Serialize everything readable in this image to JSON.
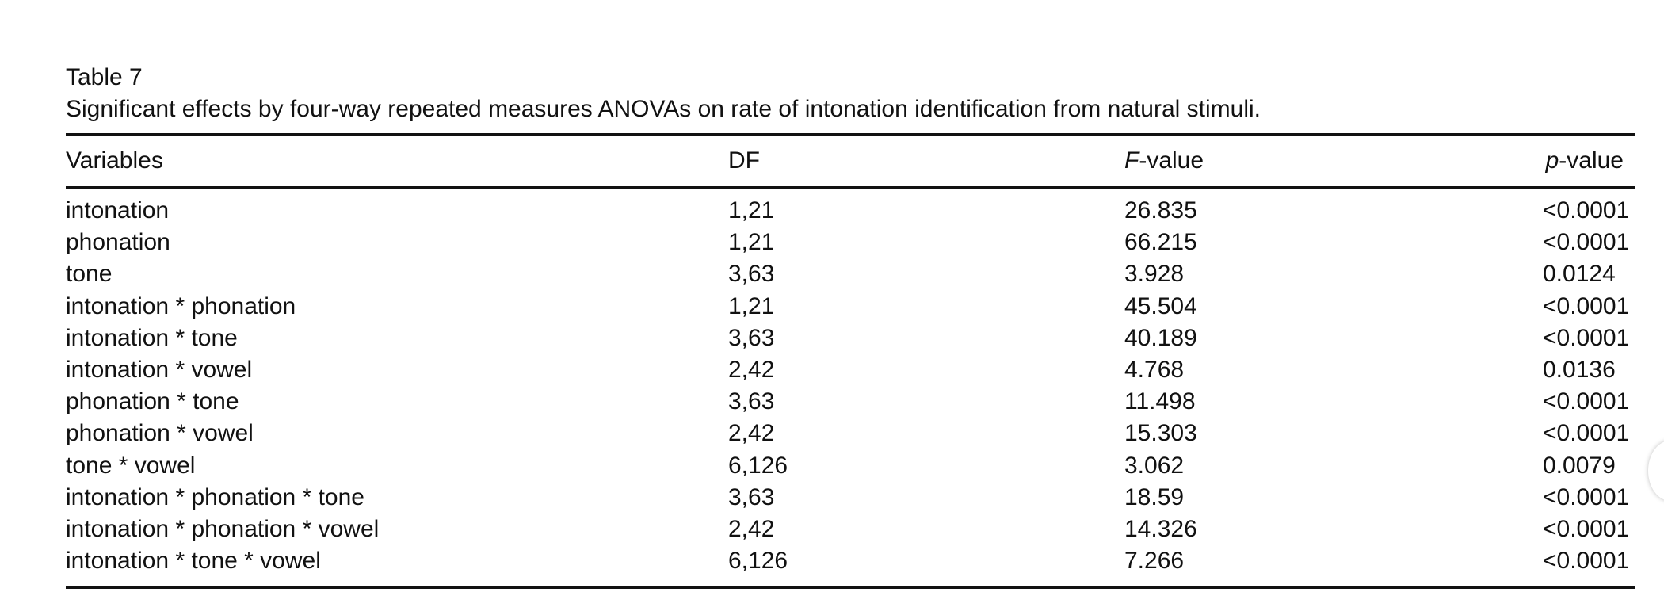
{
  "table": {
    "label": "Table 7",
    "caption": "Significant effects by four-way repeated measures ANOVAs on rate of intonation identification from natural stimuli.",
    "headers": {
      "variables": "Variables",
      "df": "DF",
      "f_italic": "F",
      "f_suffix": "-value",
      "p_italic": "p",
      "p_suffix": "-value"
    },
    "rows": [
      {
        "variables": "intonation",
        "df": "1,21",
        "f": "26.835",
        "p": "<0.0001"
      },
      {
        "variables": "phonation",
        "df": "1,21",
        "f": "66.215",
        "p": "<0.0001"
      },
      {
        "variables": "tone",
        "df": "3,63",
        "f": "3.928",
        "p": "0.0124"
      },
      {
        "variables": "intonation * phonation",
        "df": "1,21",
        "f": "45.504",
        "p": "<0.0001"
      },
      {
        "variables": "intonation * tone",
        "df": "3,63",
        "f": "40.189",
        "p": "<0.0001"
      },
      {
        "variables": "intonation * vowel",
        "df": "2,42",
        "f": "4.768",
        "p": "0.0136"
      },
      {
        "variables": "phonation * tone",
        "df": "3,63",
        "f": "11.498",
        "p": "<0.0001"
      },
      {
        "variables": "phonation * vowel",
        "df": "2,42",
        "f": "15.303",
        "p": "<0.0001"
      },
      {
        "variables": "tone * vowel",
        "df": "6,126",
        "f": "3.062",
        "p": "0.0079"
      },
      {
        "variables": "intonation * phonation * tone",
        "df": "3,63",
        "f": "18.59",
        "p": "<0.0001"
      },
      {
        "variables": "intonation * phonation * vowel",
        "df": "2,42",
        "f": "14.326",
        "p": "<0.0001"
      },
      {
        "variables": "intonation * tone * vowel",
        "df": "6,126",
        "f": "7.266",
        "p": "<0.0001"
      }
    ]
  }
}
